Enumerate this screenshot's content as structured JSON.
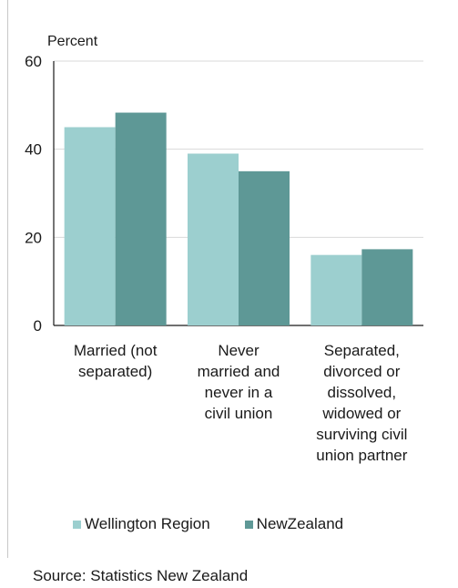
{
  "chart_data": {
    "type": "bar",
    "ylabel": "Percent",
    "ylim": [
      0,
      60
    ],
    "yticks": [
      0,
      20,
      40,
      60
    ],
    "categories": [
      [
        "Married (not",
        "separated)"
      ],
      [
        "Never",
        "married and",
        "never in a",
        "civil union"
      ],
      [
        "Separated,",
        "divorced or",
        "dissolved,",
        "widowed or",
        "surviving civil",
        "union partner"
      ]
    ],
    "series": [
      {
        "name": "Wellington Region",
        "color": "#9ccfcf",
        "values": [
          45,
          39,
          16
        ]
      },
      {
        "name": "NewZealand",
        "color": "#5e9896",
        "values": [
          48.3,
          35,
          17.3
        ]
      }
    ],
    "grid": true,
    "legend": "bottom"
  },
  "legend": {
    "items": [
      "Wellington Region",
      "NewZealand"
    ]
  },
  "source": "Source: Statistics New Zealand"
}
